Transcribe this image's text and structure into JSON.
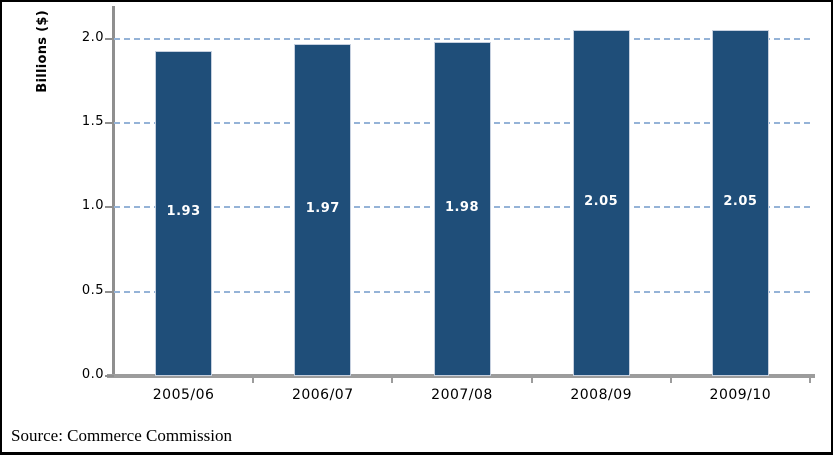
{
  "frame": {
    "background": "#FFFFFF",
    "border_color": "#000000"
  },
  "source_note": "Source: Commerce Commission",
  "chart_data": {
    "type": "bar",
    "title": "",
    "xlabel": "",
    "ylabel": "Billions ($)",
    "categories": [
      "2005/06",
      "2006/07",
      "2007/08",
      "2008/09",
      "2009/10"
    ],
    "values": [
      1.93,
      1.97,
      1.98,
      2.05,
      2.05
    ],
    "bar_labels": [
      "1.93",
      "1.97",
      "1.98",
      "2.05",
      "2.05"
    ],
    "y_ticks": [
      0.0,
      0.5,
      1.0,
      1.5,
      2.0
    ],
    "y_tick_labels": [
      "0.0",
      "0.5",
      "1.0",
      "1.5",
      "2.0"
    ],
    "ylim": [
      0,
      2.2
    ],
    "grid": "horizontal-dashed",
    "legend": "none",
    "colors": {
      "bar": "#1F4E79",
      "bar_border": "#C6D0DF",
      "bar_label_text": "#FFFFFF",
      "gridline": "#95B3D7",
      "axis": "#9C9C9C",
      "text": "#000000"
    }
  }
}
